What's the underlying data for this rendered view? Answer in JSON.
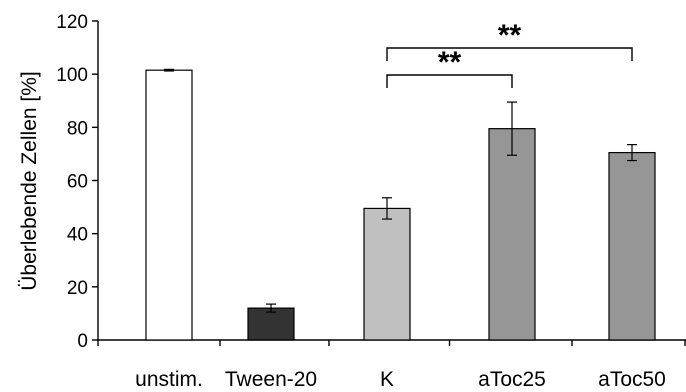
{
  "chart_data": {
    "type": "bar",
    "title": "",
    "xlabel": "",
    "ylabel": "Überlebende Zellen [%]",
    "ylim": [
      0,
      120
    ],
    "yticks": [
      0,
      20,
      40,
      60,
      80,
      100,
      120
    ],
    "grid": false,
    "categories": [
      "unstim.",
      "Tween-20",
      "K",
      "aToc25",
      "aToc50"
    ],
    "values": [
      101.5,
      12,
      49.5,
      79.5,
      70.5
    ],
    "errors": [
      0.3,
      1.5,
      4,
      10,
      3
    ],
    "bar_colors": [
      "#ffffff",
      "#333333",
      "#c0c0c0",
      "#969696",
      "#969696"
    ],
    "bar_border": "#000000",
    "significance": [
      {
        "from": "K",
        "to": "aToc25",
        "label": "**"
      },
      {
        "from": "K",
        "to": "aToc50",
        "label": "**"
      }
    ]
  }
}
